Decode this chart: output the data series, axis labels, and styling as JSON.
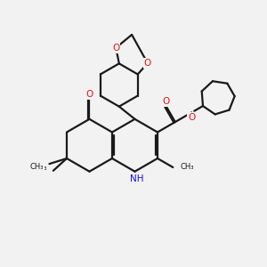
{
  "bg_color": "#f2f2f2",
  "bond_color": "#1a1a1a",
  "o_color": "#ee1111",
  "n_color": "#1111ee",
  "lw": 1.6,
  "dbo": 0.055,
  "xlim": [
    0,
    10
  ],
  "ylim": [
    0,
    10
  ]
}
